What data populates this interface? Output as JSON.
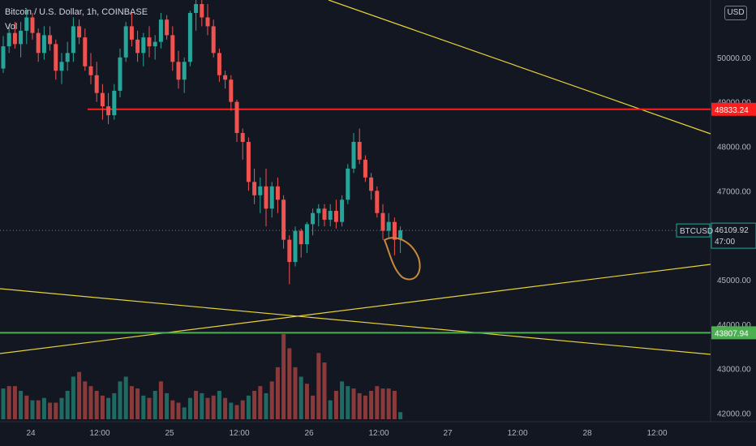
{
  "header": {
    "title": "Bitcoin / U.S. Dollar, 1h, COINBASE",
    "volume_label": "Vol"
  },
  "currency_button": "USD",
  "colors": {
    "background": "#131722",
    "up": "#26a69a",
    "down": "#ef5350",
    "vol_up": "#1f6b63",
    "vol_down": "#8a3a3a",
    "red_line": "#ff1e1e",
    "green_line": "#4caf50",
    "trend_line": "#e6d23a",
    "annotation": "#c8893a",
    "axis_text": "#b2b5be"
  },
  "chart_data": {
    "type": "candlestick",
    "symbol": "BTCUSD",
    "interval": "1h",
    "exchange": "COINBASE",
    "y_axis_ticks": [
      "42000.00",
      "43000.00",
      "44000.00",
      "45000.00",
      "46000.00",
      "47000.00",
      "48000.00",
      "49000.00",
      "50000.00"
    ],
    "x_axis_ticks": [
      "24",
      "12:00",
      "25",
      "12:00",
      "26",
      "12:00",
      "27",
      "12:00",
      "28",
      "12:00"
    ],
    "ylim": [
      41900,
      51200
    ],
    "price_labels": {
      "red_level": "48833.24",
      "green_level": "43807.94",
      "last_price_symbol": "BTCUSD",
      "last_price": "46109.92",
      "countdown": "47:00"
    },
    "horizontal_levels": [
      {
        "name": "resistance",
        "value": 48833.24,
        "color": "red"
      },
      {
        "name": "support",
        "value": 43807.94,
        "color": "green"
      }
    ],
    "last_price": 46109.92,
    "candles": [
      [
        49750,
        50480,
        49650,
        50250
      ],
      [
        50250,
        50750,
        50100,
        50550
      ],
      [
        50550,
        50800,
        50200,
        50300
      ],
      [
        50300,
        50800,
        50000,
        50600
      ],
      [
        50600,
        51100,
        50300,
        50900
      ],
      [
        50900,
        51000,
        50400,
        50550
      ],
      [
        50550,
        50650,
        49900,
        50100
      ],
      [
        50100,
        50700,
        49950,
        50500
      ],
      [
        50500,
        50700,
        50150,
        50300
      ],
      [
        50300,
        50400,
        49500,
        49700
      ],
      [
        49700,
        50100,
        49400,
        49900
      ],
      [
        49900,
        50350,
        49700,
        50100
      ],
      [
        50100,
        50900,
        49900,
        50700
      ],
      [
        50700,
        50850,
        50300,
        50450
      ],
      [
        50450,
        50650,
        49700,
        49800
      ],
      [
        49800,
        50100,
        49400,
        49600
      ],
      [
        49600,
        49900,
        49000,
        49200
      ],
      [
        49200,
        49400,
        48600,
        48900
      ],
      [
        48900,
        49200,
        48500,
        48700
      ],
      [
        48700,
        49400,
        48600,
        49250
      ],
      [
        49250,
        50200,
        49100,
        50000
      ],
      [
        50000,
        50800,
        49900,
        50700
      ],
      [
        50700,
        51000,
        50250,
        50400
      ],
      [
        50400,
        50600,
        49900,
        50100
      ],
      [
        50100,
        50550,
        49800,
        50450
      ],
      [
        50450,
        50700,
        50000,
        50250
      ],
      [
        50250,
        50500,
        49950,
        50350
      ],
      [
        50350,
        51000,
        50200,
        50850
      ],
      [
        50850,
        50950,
        50400,
        50500
      ],
      [
        50500,
        50700,
        49700,
        49900
      ],
      [
        49900,
        50150,
        49300,
        49500
      ],
      [
        49500,
        50000,
        49200,
        49900
      ],
      [
        49900,
        51050,
        49800,
        51000
      ],
      [
        51000,
        51300,
        50600,
        51200
      ],
      [
        51200,
        51300,
        50700,
        50900
      ],
      [
        50900,
        51200,
        50500,
        50700
      ],
      [
        50700,
        50850,
        50000,
        50100
      ],
      [
        50100,
        50200,
        49450,
        49600
      ],
      [
        49600,
        49700,
        49300,
        49500
      ],
      [
        49500,
        49600,
        48800,
        49000
      ],
      [
        49000,
        49050,
        48100,
        48300
      ],
      [
        48300,
        48400,
        47700,
        48100
      ],
      [
        48100,
        48200,
        47000,
        47200
      ],
      [
        47200,
        47500,
        46700,
        46900
      ],
      [
        46900,
        47300,
        46500,
        47100
      ],
      [
        47100,
        47500,
        46200,
        46600
      ],
      [
        46600,
        47200,
        46400,
        47100
      ],
      [
        47100,
        47300,
        46500,
        46800
      ],
      [
        46800,
        46900,
        45700,
        45900
      ],
      [
        45900,
        46000,
        44900,
        45400
      ],
      [
        45400,
        46200,
        45300,
        46100
      ],
      [
        46100,
        46150,
        45500,
        45800
      ],
      [
        45800,
        46300,
        45600,
        46250
      ],
      [
        46250,
        46600,
        46000,
        46500
      ],
      [
        46500,
        46700,
        46200,
        46600
      ],
      [
        46600,
        46700,
        46200,
        46350
      ],
      [
        46350,
        46700,
        46200,
        46550
      ],
      [
        46550,
        46800,
        46150,
        46300
      ],
      [
        46300,
        46900,
        46200,
        46800
      ],
      [
        46800,
        47600,
        46700,
        47500
      ],
      [
        47500,
        48300,
        47400,
        48100
      ],
      [
        48100,
        48400,
        47600,
        47700
      ],
      [
        47700,
        47800,
        47200,
        47300
      ],
      [
        47300,
        47400,
        46800,
        47000
      ],
      [
        47000,
        47100,
        46400,
        46500
      ],
      [
        46500,
        46700,
        45900,
        46100
      ],
      [
        46100,
        46500,
        45950,
        46300
      ],
      [
        46300,
        46400,
        45550,
        45900
      ],
      [
        45900,
        46200,
        45600,
        46109.92
      ]
    ],
    "volume_scale": 100,
    "volumes": [
      [
        13,
        1
      ],
      [
        14,
        0
      ],
      [
        14,
        0
      ],
      [
        12,
        1
      ],
      [
        10,
        0
      ],
      [
        8,
        1
      ],
      [
        8,
        0
      ],
      [
        9,
        1
      ],
      [
        7,
        0
      ],
      [
        7,
        0
      ],
      [
        9,
        1
      ],
      [
        12,
        1
      ],
      [
        18,
        1
      ],
      [
        20,
        0
      ],
      [
        16,
        0
      ],
      [
        14,
        0
      ],
      [
        12,
        0
      ],
      [
        10,
        0
      ],
      [
        9,
        1
      ],
      [
        11,
        1
      ],
      [
        16,
        1
      ],
      [
        18,
        1
      ],
      [
        14,
        0
      ],
      [
        13,
        0
      ],
      [
        10,
        1
      ],
      [
        9,
        0
      ],
      [
        12,
        1
      ],
      [
        16,
        0
      ],
      [
        11,
        1
      ],
      [
        8,
        0
      ],
      [
        7,
        0
      ],
      [
        5,
        1
      ],
      [
        9,
        1
      ],
      [
        12,
        0
      ],
      [
        11,
        1
      ],
      [
        9,
        0
      ],
      [
        10,
        0
      ],
      [
        12,
        1
      ],
      [
        9,
        0
      ],
      [
        7,
        1
      ],
      [
        6,
        0
      ],
      [
        8,
        0
      ],
      [
        10,
        1
      ],
      [
        12,
        0
      ],
      [
        14,
        0
      ],
      [
        11,
        1
      ],
      [
        16,
        0
      ],
      [
        22,
        0
      ],
      [
        36,
        0
      ],
      [
        30,
        0
      ],
      [
        22,
        0
      ],
      [
        18,
        1
      ],
      [
        15,
        0
      ],
      [
        10,
        0
      ],
      [
        28,
        0
      ],
      [
        24,
        0
      ],
      [
        8,
        1
      ],
      [
        12,
        0
      ],
      [
        16,
        1
      ],
      [
        14,
        1
      ],
      [
        13,
        0
      ],
      [
        11,
        0
      ],
      [
        10,
        0
      ],
      [
        12,
        0
      ],
      [
        14,
        0
      ],
      [
        13,
        0
      ],
      [
        13,
        0
      ],
      [
        12,
        0
      ],
      [
        3,
        1
      ]
    ]
  }
}
